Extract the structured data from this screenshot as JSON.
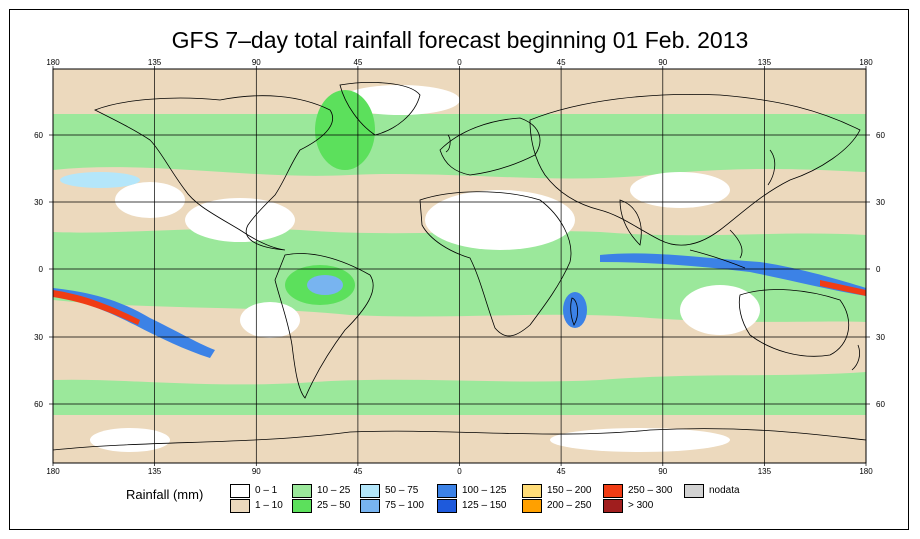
{
  "title": "GFS 7–day total rainfall forecast beginning 01 Feb. 2013",
  "top_ticks": [
    "180",
    "135",
    "90",
    "45",
    "0",
    "45",
    "90",
    "135",
    "180"
  ],
  "bottom_ticks": [
    "180",
    "135",
    "90",
    "45",
    "0",
    "45",
    "90",
    "135",
    "180"
  ],
  "left_ticks": [
    "60",
    "30",
    "0",
    "30",
    "60"
  ],
  "right_ticks": [
    "60",
    "30",
    "0",
    "30",
    "60"
  ],
  "legend": {
    "title": "Rainfall (mm)",
    "items": [
      {
        "label": "0 – 1",
        "color": "#ffffff"
      },
      {
        "label": "1 – 10",
        "color": "#ecd9bd"
      },
      {
        "label": "10 – 25",
        "color": "#9be89b"
      },
      {
        "label": "25 – 50",
        "color": "#5ce05c"
      },
      {
        "label": "50 – 75",
        "color": "#b4e6fa"
      },
      {
        "label": "75 – 100",
        "color": "#78b4f0"
      },
      {
        "label": "100 – 125",
        "color": "#3c82e6"
      },
      {
        "label": "125 – 150",
        "color": "#1e5adc"
      },
      {
        "label": "150 – 200",
        "color": "#ffdc78"
      },
      {
        "label": "200 – 250",
        "color": "#ffa000"
      },
      {
        "label": "250 – 300",
        "color": "#f03c14"
      },
      {
        "label": "> 300",
        "color": "#a01e1e"
      },
      {
        "label": "nodata",
        "color": "#d2d2d2"
      }
    ]
  }
}
